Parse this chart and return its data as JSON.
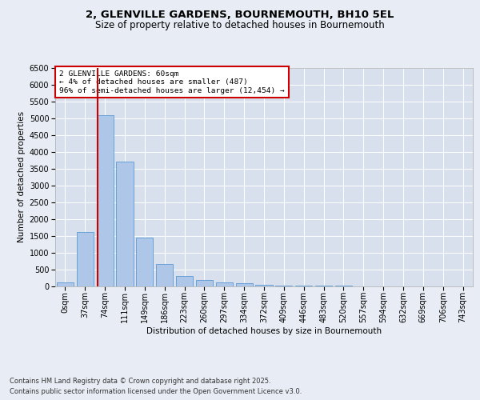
{
  "title1": "2, GLENVILLE GARDENS, BOURNEMOUTH, BH10 5EL",
  "title2": "Size of property relative to detached houses in Bournemouth",
  "xlabel": "Distribution of detached houses by size in Bournemouth",
  "ylabel": "Number of detached properties",
  "categories": [
    "0sqm",
    "37sqm",
    "74sqm",
    "111sqm",
    "149sqm",
    "186sqm",
    "223sqm",
    "260sqm",
    "297sqm",
    "334sqm",
    "372sqm",
    "409sqm",
    "446sqm",
    "483sqm",
    "520sqm",
    "557sqm",
    "594sqm",
    "632sqm",
    "669sqm",
    "706sqm",
    "743sqm"
  ],
  "values": [
    100,
    1600,
    5100,
    3700,
    1450,
    650,
    300,
    175,
    100,
    75,
    25,
    15,
    5,
    2,
    1,
    0,
    0,
    0,
    0,
    0,
    0
  ],
  "bar_color": "#aec6e8",
  "bar_edge_color": "#5b9bd5",
  "vline_x": 1.62,
  "vline_color": "#cc0000",
  "annotation_text": "2 GLENVILLE GARDENS: 60sqm\n← 4% of detached houses are smaller (487)\n96% of semi-detached houses are larger (12,454) →",
  "annotation_box_color": "#ffffff",
  "annotation_box_edge": "#cc0000",
  "ylim": [
    0,
    6500
  ],
  "yticks": [
    0,
    500,
    1000,
    1500,
    2000,
    2500,
    3000,
    3500,
    4000,
    4500,
    5000,
    5500,
    6000,
    6500
  ],
  "footer1": "Contains HM Land Registry data © Crown copyright and database right 2025.",
  "footer2": "Contains public sector information licensed under the Open Government Licence v3.0.",
  "background_color": "#e8ecf4",
  "plot_bg_color": "#d8e0ee",
  "grid_color": "#ffffff",
  "title1_fontsize": 9.5,
  "title2_fontsize": 8.5,
  "ylabel_fontsize": 7.5,
  "xlabel_fontsize": 7.5,
  "tick_fontsize": 7,
  "footer_fontsize": 6
}
